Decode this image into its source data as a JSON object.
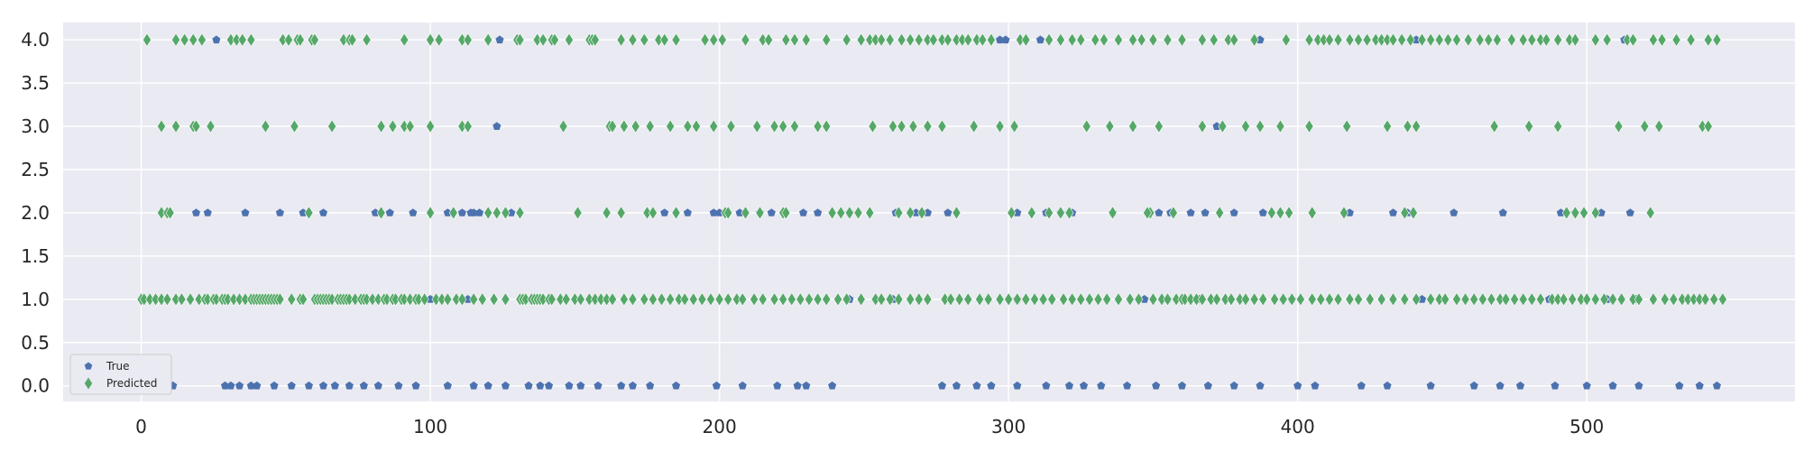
{
  "chart_data": {
    "type": "scatter",
    "title": "",
    "xlabel": "",
    "ylabel": "",
    "xlim": [
      -27,
      572
    ],
    "ylim": [
      -0.18,
      4.2
    ],
    "x_ticks": [
      0,
      100,
      200,
      300,
      400,
      500
    ],
    "y_ticks": [
      0.0,
      0.5,
      1.0,
      1.5,
      2.0,
      2.5,
      3.0,
      3.5,
      4.0
    ],
    "x_tick_labels": [
      "0",
      "100",
      "200",
      "300",
      "400",
      "500"
    ],
    "y_tick_labels": [
      "0.0",
      "0.5",
      "1.0",
      "1.5",
      "2.0",
      "2.5",
      "3.0",
      "3.5",
      "4.0"
    ],
    "grid": true,
    "legend_position": "lower-left",
    "series": [
      {
        "name": "True",
        "marker": "pentagon",
        "color": "#4C72B0",
        "points_by_level": [
          {
            "y": 4,
            "x": [
              26,
              124,
              297,
              299,
              311,
              387,
              441,
              513
            ]
          },
          {
            "y": 3,
            "x": [
              123,
              372
            ]
          },
          {
            "y": 2,
            "x": [
              19,
              23,
              36,
              48,
              56,
              63,
              81,
              86,
              94,
              106,
              111,
              114,
              115,
              117,
              128,
              181,
              189,
              198,
              200,
              207,
              214,
              218,
              229,
              234,
              245,
              261,
              268,
              272,
              279,
              303,
              313,
              318,
              322,
              336,
              352,
              356,
              363,
              368,
              378,
              388,
              418,
              433,
              438,
              454,
              471,
              491,
              496,
              505,
              515
            ]
          },
          {
            "y": 1,
            "x": [
              100,
              113,
              133,
              245,
              260,
              303,
              347,
              355,
              366,
              398,
              443,
              487,
              507,
              517
            ]
          },
          {
            "y": 0,
            "x": [
              11,
              29,
              31,
              34,
              38,
              40,
              46,
              52,
              58,
              63,
              67,
              72,
              77,
              82,
              89,
              95,
              106,
              115,
              120,
              126,
              134,
              138,
              141,
              148,
              152,
              158,
              166,
              170,
              176,
              185,
              199,
              208,
              220,
              227,
              230,
              239,
              277,
              282,
              289,
              294,
              303,
              313,
              321,
              326,
              332,
              341,
              351,
              360,
              369,
              378,
              387,
              400,
              406,
              422,
              431,
              446,
              461,
              470,
              477,
              489,
              500,
              509,
              518,
              532,
              539,
              545
            ]
          }
        ]
      },
      {
        "name": "Predicted",
        "marker": "thin_diamond",
        "color": "#55A868",
        "points_by_level": [
          {
            "y": 4,
            "x": [
              2,
              12,
              15,
              18,
              21,
              31,
              33,
              35,
              38,
              49,
              51,
              54,
              55,
              59,
              60,
              70,
              72,
              73,
              78,
              91,
              100,
              103,
              111,
              113,
              120,
              130,
              131,
              137,
              139,
              142,
              143,
              148,
              155,
              156,
              157,
              166,
              170,
              174,
              179,
              181,
              185,
              195,
              198,
              201,
              209,
              215,
              217,
              223,
              226,
              230,
              237,
              244,
              249,
              252,
              254,
              256,
              259,
              263,
              266,
              269,
              272,
              274,
              277,
              279,
              282,
              284,
              286,
              289,
              291,
              294,
              304,
              306,
              314,
              318,
              322,
              325,
              330,
              333,
              338,
              343,
              346,
              350,
              355,
              360,
              367,
              371,
              376,
              378,
              385,
              396,
              404,
              407,
              409,
              411,
              414,
              418,
              421,
              424,
              427,
              429,
              431,
              433,
              436,
              439,
              443,
              446,
              449,
              452,
              455,
              459,
              463,
              466,
              469,
              474,
              478,
              481,
              484,
              486,
              490,
              494,
              496,
              503,
              507,
              514,
              516,
              523,
              526,
              531,
              536,
              542,
              545
            ]
          },
          {
            "y": 3,
            "x": [
              7,
              12,
              18,
              19,
              24,
              43,
              53,
              66,
              83,
              87,
              91,
              93,
              100,
              111,
              113,
              146,
              162,
              163,
              167,
              171,
              176,
              183,
              189,
              192,
              198,
              204,
              213,
              219,
              222,
              226,
              234,
              237,
              253,
              260,
              263,
              267,
              272,
              277,
              288,
              297,
              302,
              327,
              335,
              343,
              352,
              367,
              374,
              382,
              387,
              394,
              404,
              417,
              431,
              438,
              441,
              468,
              480,
              490,
              511,
              520,
              525,
              540,
              542
            ]
          },
          {
            "y": 2,
            "x": [
              7,
              9,
              10,
              58,
              83,
              100,
              108,
              120,
              123,
              126,
              131,
              151,
              161,
              166,
              175,
              177,
              185,
              202,
              203,
              209,
              214,
              222,
              223,
              239,
              242,
              245,
              248,
              252,
              262,
              266,
              270,
              282,
              301,
              308,
              314,
              318,
              321,
              336,
              349,
              348,
              357,
              373,
              391,
              394,
              397,
              405,
              416,
              437,
              440,
              493,
              496,
              499,
              503,
              522
            ]
          },
          {
            "y": 1,
            "x": [
              0,
              1,
              3,
              5,
              7,
              9,
              12,
              14,
              17,
              20,
              22,
              23,
              25,
              26,
              28,
              29,
              30,
              32,
              34,
              36,
              38,
              39,
              40,
              41,
              42,
              43,
              44,
              45,
              46,
              47,
              48,
              52,
              55,
              56,
              60,
              61,
              62,
              63,
              64,
              65,
              66,
              68,
              69,
              70,
              71,
              72,
              74,
              76,
              77,
              78,
              80,
              82,
              84,
              85,
              87,
              88,
              90,
              91,
              93,
              95,
              96,
              98,
              102,
              104,
              106,
              109,
              111,
              115,
              118,
              122,
              126,
              131,
              132,
              133,
              135,
              136,
              137,
              138,
              139,
              141,
              142,
              145,
              147,
              150,
              152,
              155,
              157,
              159,
              161,
              163,
              167,
              170,
              174,
              177,
              180,
              183,
              186,
              188,
              191,
              194,
              197,
              200,
              203,
              206,
              208,
              212,
              215,
              219,
              222,
              225,
              228,
              231,
              234,
              237,
              241,
              244,
              249,
              254,
              256,
              259,
              262,
              266,
              269,
              272,
              278,
              280,
              283,
              286,
              290,
              293,
              297,
              300,
              303,
              306,
              309,
              312,
              315,
              319,
              322,
              325,
              328,
              331,
              334,
              338,
              342,
              345,
              350,
              353,
              355,
              358,
              360,
              361,
              363,
              365,
              367,
              370,
              372,
              375,
              377,
              380,
              382,
              385,
              388,
              392,
              395,
              398,
              401,
              405,
              408,
              411,
              414,
              418,
              421,
              425,
              429,
              433,
              437,
              441,
              446,
              449,
              451,
              455,
              458,
              461,
              464,
              467,
              470,
              472,
              475,
              478,
              481,
              484,
              488,
              490,
              492,
              495,
              498,
              500,
              503,
              506,
              509,
              512,
              516,
              518,
              523,
              527,
              530,
              533,
              535,
              537,
              539,
              541,
              544,
              547
            ]
          },
          {
            "y": 0,
            "x": []
          }
        ]
      }
    ]
  },
  "colors": {
    "axes_background": "#EAEAF2",
    "grid": "#FFFFFF",
    "true_marker": "#4C72B0",
    "predicted_marker": "#55A868",
    "text": "#262626"
  }
}
